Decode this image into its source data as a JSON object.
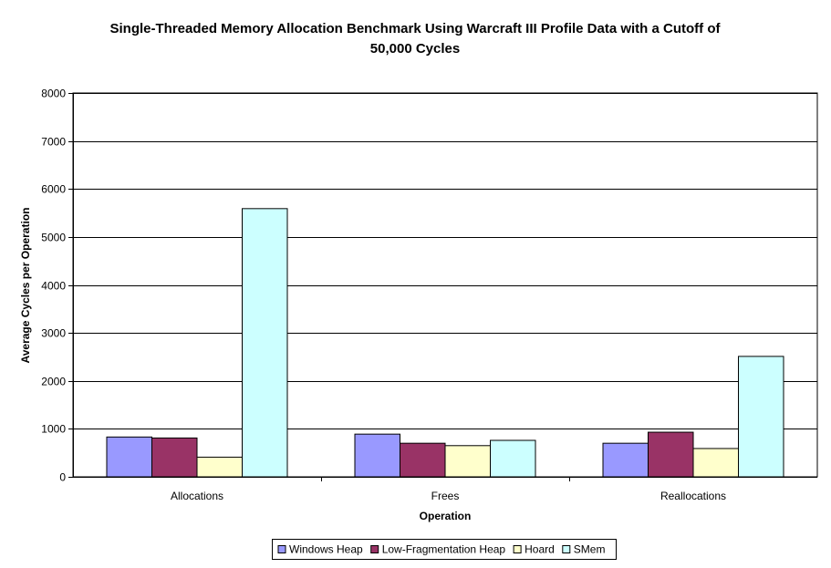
{
  "chart_data": {
    "type": "bar",
    "title_line1": "Single-Threaded Memory Allocation Benchmark Using Warcraft III Profile Data with a Cutoff of",
    "title_line2": "50,000 Cycles",
    "xlabel": "Operation",
    "ylabel": "Average Cycles per Operation",
    "ylim": [
      0,
      8000
    ],
    "yticks": [
      "0",
      "1000",
      "2000",
      "3000",
      "4000",
      "5000",
      "6000",
      "7000",
      "8000"
    ],
    "grid": true,
    "legend_position": "bottom",
    "categories": [
      "Allocations",
      "Frees",
      "Reallocations"
    ],
    "series": [
      {
        "name": "Windows Heap",
        "color": "#9999ff",
        "values": [
          830,
          890,
          700
        ]
      },
      {
        "name": "Low-Fragmentation Heap",
        "color": "#993366",
        "values": [
          810,
          700,
          930
        ]
      },
      {
        "name": "Hoard",
        "color": "#ffffcc",
        "values": [
          410,
          650,
          590
        ]
      },
      {
        "name": "SMem",
        "color": "#ccffff",
        "values": [
          5590,
          760,
          2510
        ]
      }
    ]
  }
}
